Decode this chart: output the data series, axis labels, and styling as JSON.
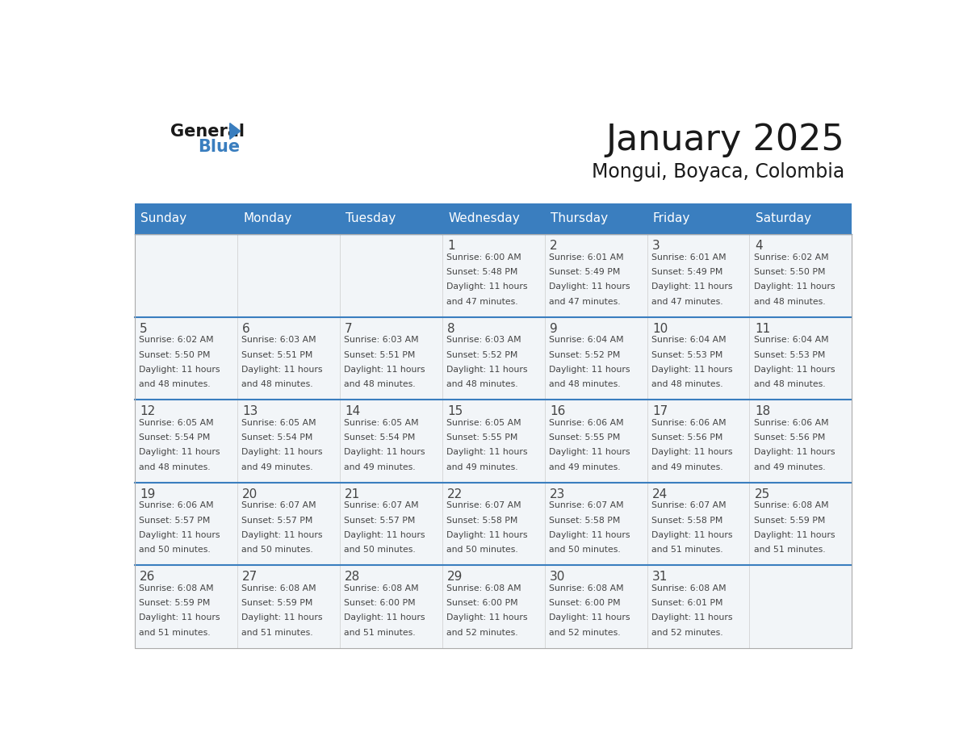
{
  "title": "January 2025",
  "subtitle": "Mongui, Boyaca, Colombia",
  "header_bg": "#3a7ebf",
  "header_text": "#ffffff",
  "days_of_week": [
    "Sunday",
    "Monday",
    "Tuesday",
    "Wednesday",
    "Thursday",
    "Friday",
    "Saturday"
  ],
  "separator_color": "#3a7ebf",
  "text_color": "#444444",
  "cell_bg": "#f2f5f8",
  "calendar": [
    [
      null,
      null,
      null,
      {
        "day": 1,
        "sunrise": "6:00 AM",
        "sunset": "5:48 PM",
        "daylight": "11 hours and 47 minutes."
      },
      {
        "day": 2,
        "sunrise": "6:01 AM",
        "sunset": "5:49 PM",
        "daylight": "11 hours and 47 minutes."
      },
      {
        "day": 3,
        "sunrise": "6:01 AM",
        "sunset": "5:49 PM",
        "daylight": "11 hours and 47 minutes."
      },
      {
        "day": 4,
        "sunrise": "6:02 AM",
        "sunset": "5:50 PM",
        "daylight": "11 hours and 48 minutes."
      }
    ],
    [
      {
        "day": 5,
        "sunrise": "6:02 AM",
        "sunset": "5:50 PM",
        "daylight": "11 hours and 48 minutes."
      },
      {
        "day": 6,
        "sunrise": "6:03 AM",
        "sunset": "5:51 PM",
        "daylight": "11 hours and 48 minutes."
      },
      {
        "day": 7,
        "sunrise": "6:03 AM",
        "sunset": "5:51 PM",
        "daylight": "11 hours and 48 minutes."
      },
      {
        "day": 8,
        "sunrise": "6:03 AM",
        "sunset": "5:52 PM",
        "daylight": "11 hours and 48 minutes."
      },
      {
        "day": 9,
        "sunrise": "6:04 AM",
        "sunset": "5:52 PM",
        "daylight": "11 hours and 48 minutes."
      },
      {
        "day": 10,
        "sunrise": "6:04 AM",
        "sunset": "5:53 PM",
        "daylight": "11 hours and 48 minutes."
      },
      {
        "day": 11,
        "sunrise": "6:04 AM",
        "sunset": "5:53 PM",
        "daylight": "11 hours and 48 minutes."
      }
    ],
    [
      {
        "day": 12,
        "sunrise": "6:05 AM",
        "sunset": "5:54 PM",
        "daylight": "11 hours and 48 minutes."
      },
      {
        "day": 13,
        "sunrise": "6:05 AM",
        "sunset": "5:54 PM",
        "daylight": "11 hours and 49 minutes."
      },
      {
        "day": 14,
        "sunrise": "6:05 AM",
        "sunset": "5:54 PM",
        "daylight": "11 hours and 49 minutes."
      },
      {
        "day": 15,
        "sunrise": "6:05 AM",
        "sunset": "5:55 PM",
        "daylight": "11 hours and 49 minutes."
      },
      {
        "day": 16,
        "sunrise": "6:06 AM",
        "sunset": "5:55 PM",
        "daylight": "11 hours and 49 minutes."
      },
      {
        "day": 17,
        "sunrise": "6:06 AM",
        "sunset": "5:56 PM",
        "daylight": "11 hours and 49 minutes."
      },
      {
        "day": 18,
        "sunrise": "6:06 AM",
        "sunset": "5:56 PM",
        "daylight": "11 hours and 49 minutes."
      }
    ],
    [
      {
        "day": 19,
        "sunrise": "6:06 AM",
        "sunset": "5:57 PM",
        "daylight": "11 hours and 50 minutes."
      },
      {
        "day": 20,
        "sunrise": "6:07 AM",
        "sunset": "5:57 PM",
        "daylight": "11 hours and 50 minutes."
      },
      {
        "day": 21,
        "sunrise": "6:07 AM",
        "sunset": "5:57 PM",
        "daylight": "11 hours and 50 minutes."
      },
      {
        "day": 22,
        "sunrise": "6:07 AM",
        "sunset": "5:58 PM",
        "daylight": "11 hours and 50 minutes."
      },
      {
        "day": 23,
        "sunrise": "6:07 AM",
        "sunset": "5:58 PM",
        "daylight": "11 hours and 50 minutes."
      },
      {
        "day": 24,
        "sunrise": "6:07 AM",
        "sunset": "5:58 PM",
        "daylight": "11 hours and 51 minutes."
      },
      {
        "day": 25,
        "sunrise": "6:08 AM",
        "sunset": "5:59 PM",
        "daylight": "11 hours and 51 minutes."
      }
    ],
    [
      {
        "day": 26,
        "sunrise": "6:08 AM",
        "sunset": "5:59 PM",
        "daylight": "11 hours and 51 minutes."
      },
      {
        "day": 27,
        "sunrise": "6:08 AM",
        "sunset": "5:59 PM",
        "daylight": "11 hours and 51 minutes."
      },
      {
        "day": 28,
        "sunrise": "6:08 AM",
        "sunset": "6:00 PM",
        "daylight": "11 hours and 51 minutes."
      },
      {
        "day": 29,
        "sunrise": "6:08 AM",
        "sunset": "6:00 PM",
        "daylight": "11 hours and 52 minutes."
      },
      {
        "day": 30,
        "sunrise": "6:08 AM",
        "sunset": "6:00 PM",
        "daylight": "11 hours and 52 minutes."
      },
      {
        "day": 31,
        "sunrise": "6:08 AM",
        "sunset": "6:01 PM",
        "daylight": "11 hours and 52 minutes."
      },
      null
    ]
  ]
}
